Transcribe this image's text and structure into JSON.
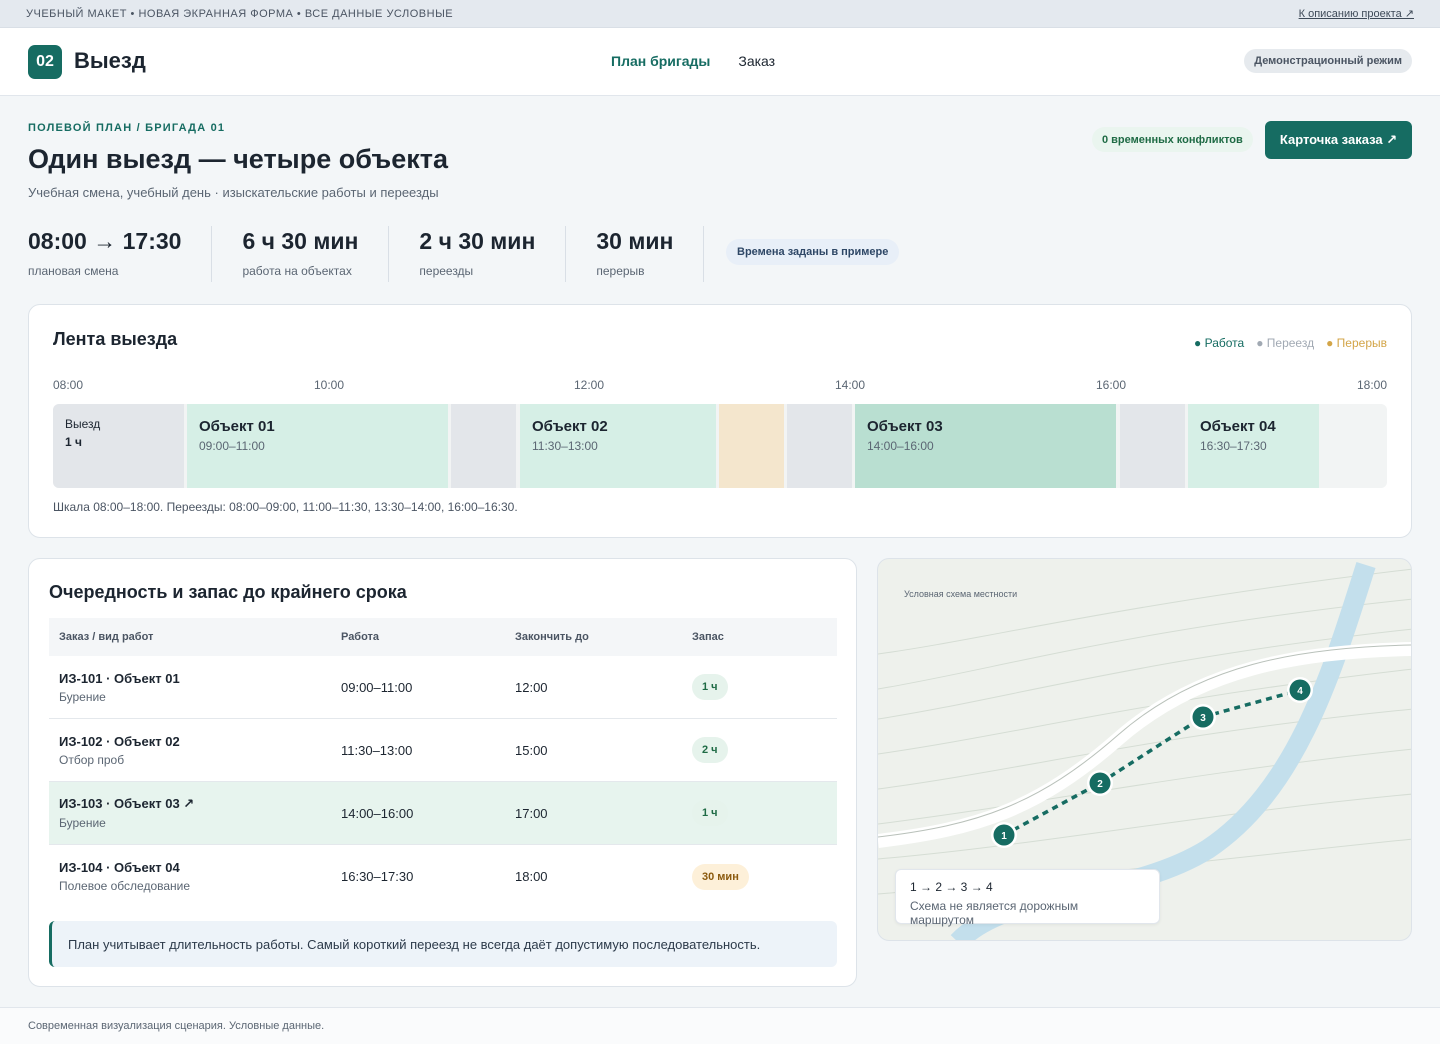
{
  "topstrip": {
    "left_text": "УЧЕБНЫЙ МАКЕТ • НОВАЯ ЭКРАННАЯ ФОРМА • ВСЕ ДАННЫЕ УСЛОВНЫЕ",
    "link": "К описанию проекта ↗"
  },
  "header": {
    "badge": "02",
    "title": "Выезд",
    "nav": [
      "План бригады",
      "Заказ"
    ],
    "demo": "Демонстрационный режим"
  },
  "page": {
    "eyebrow": "ПОЛЕВОЙ ПЛАН / БРИГАДА 01",
    "title": "Один выезд — четыре объекта",
    "subtitle": "Учебная смена, учебный день · изыскательские работы и переезды",
    "conflicts": "0 временных конфликтов",
    "card_button": "Карточка заказа ↗"
  },
  "stats": [
    {
      "value": "08:00 → 17:30",
      "label": "плановая смена"
    },
    {
      "value": "6 ч 30 мин",
      "label": "работа на объектах"
    },
    {
      "value": "2 ч 30 мин",
      "label": "переезды"
    },
    {
      "value": "30 мин",
      "label": "перерыв"
    }
  ],
  "time_note": "Времена заданы в примере",
  "timeline": {
    "title": "Лента выезда",
    "legend": {
      "work": "● Работа",
      "move": "● Переезд",
      "break": "● Перерыв"
    },
    "ticks": [
      "08:00",
      "10:00",
      "12:00",
      "14:00",
      "16:00",
      "18:00"
    ],
    "depart": {
      "label": "Выезд",
      "duration": "1 ч"
    },
    "objects": [
      {
        "name": "Объект 01",
        "time": "09:00–11:00"
      },
      {
        "name": "Объект 02",
        "time": "11:30–13:00"
      },
      {
        "name": "Объект 03",
        "time": "14:00–16:00"
      },
      {
        "name": "Объект 04",
        "time": "16:30–17:30"
      }
    ],
    "note": "Шкала 08:00–18:00. Переезды: 08:00–09:00, 11:00–11:30, 13:30–14:00, 16:00–16:30."
  },
  "queue": {
    "title": "Очередность и запас до крайнего срока",
    "columns": [
      "Заказ / вид работ",
      "Работа",
      "Закончить до",
      "Запас"
    ],
    "rows": [
      {
        "order": "ИЗ-101 · Объект 01",
        "type": "Бурение",
        "work": "09:00–11:00",
        "deadline": "12:00",
        "reserve": "1 ч"
      },
      {
        "order": "ИЗ-102 · Объект 02",
        "type": "Отбор проб",
        "work": "11:30–13:00",
        "deadline": "15:00",
        "reserve": "2 ч"
      },
      {
        "order": "ИЗ-103 · Объект 03 ↗",
        "type": "Бурение",
        "work": "14:00–16:00",
        "deadline": "17:00",
        "reserve": "1 ч"
      },
      {
        "order": "ИЗ-104 · Объект 04",
        "type": "Полевое обследование",
        "work": "16:30–17:30",
        "deadline": "18:00",
        "reserve": "30 мин"
      }
    ],
    "hint": "План учитывает длительность работы. Самый короткий переезд не всегда даёт допустимую последовательность."
  },
  "map": {
    "label": "Условная схема местности",
    "points": [
      "1",
      "2",
      "3",
      "4"
    ],
    "sequence": "1 → 2 → 3 → 4",
    "note": "Схема не является дорожным маршрутом"
  },
  "footer": "Современная визуализация сценария. Условные данные.",
  "colors": {
    "accent": "#166c62",
    "work": "#d6efe6",
    "move": "#e3e6ea",
    "break": "#f4e6cd"
  }
}
